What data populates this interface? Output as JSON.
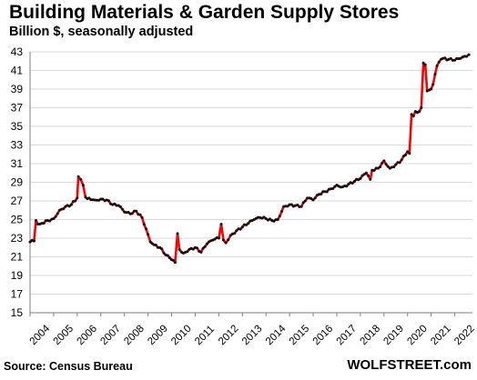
{
  "title": "Building Materials & Garden Supply Stores",
  "subtitle": "Billion $, seasonally adjusted",
  "source": "Source: Census Bureau",
  "brand": "WOLFSTREET.com",
  "colors": {
    "line": "#ff0000",
    "markers": "#111111",
    "grid": "#d9d9d9",
    "axis": "#7f7f7f"
  },
  "chart_data": {
    "type": "line",
    "title": "Building Materials & Garden Supply Stores",
    "subtitle": "Billion $, seasonally adjusted",
    "xlabel": "",
    "ylabel": "",
    "xlim": [
      2004.0,
      2022.75
    ],
    "ylim": [
      15,
      43
    ],
    "y_ticks": [
      15,
      17,
      19,
      21,
      23,
      25,
      27,
      29,
      31,
      33,
      35,
      37,
      39,
      41,
      43
    ],
    "x_tick_labels": [
      "2004",
      "2005",
      "2006",
      "2007",
      "2008",
      "2009",
      "2010",
      "2011",
      "2012",
      "2013",
      "2014",
      "2015",
      "2016",
      "2017",
      "2018",
      "2019",
      "2020",
      "2021",
      "2022"
    ],
    "grid": true,
    "series": [
      {
        "x": [
          2004.0,
          2004.17,
          2004.25,
          2004.33,
          2004.5,
          2004.75,
          2005.0,
          2005.25,
          2005.5,
          2005.75,
          2006.0,
          2006.05,
          2006.15,
          2006.25,
          2006.35,
          2006.5,
          2006.75,
          2007.0,
          2007.25,
          2007.5,
          2007.75,
          2008.0,
          2008.25,
          2008.5,
          2008.75,
          2009.0,
          2009.1,
          2009.25,
          2009.5,
          2009.75,
          2010.0,
          2010.15,
          2010.25,
          2010.33,
          2010.42,
          2010.5,
          2010.75,
          2011.0,
          2011.25,
          2011.5,
          2011.75,
          2012.0,
          2012.1,
          2012.2,
          2012.3,
          2012.5,
          2012.75,
          2013.0,
          2013.25,
          2013.5,
          2013.75,
          2014.0,
          2014.25,
          2014.5,
          2014.75,
          2015.0,
          2015.25,
          2015.5,
          2015.75,
          2016.0,
          2016.25,
          2016.5,
          2016.75,
          2017.0,
          2017.25,
          2017.5,
          2017.75,
          2018.0,
          2018.25,
          2018.42,
          2018.5,
          2018.75,
          2019.0,
          2019.25,
          2019.5,
          2019.75,
          2020.0,
          2020.08,
          2020.17,
          2020.25,
          2020.33,
          2020.5,
          2020.58,
          2020.67,
          2020.75,
          2020.83,
          2020.92,
          2021.0,
          2021.08,
          2021.17,
          2021.25,
          2021.33,
          2021.42,
          2021.5,
          2021.75,
          2022.0,
          2022.25,
          2022.5,
          2022.6
        ],
        "y": [
          22.6,
          22.7,
          24.9,
          24.5,
          24.6,
          24.9,
          25.1,
          26.0,
          26.4,
          26.6,
          27.3,
          29.6,
          29.3,
          28.7,
          27.4,
          27.3,
          27.1,
          27.2,
          27.1,
          26.6,
          26.5,
          25.8,
          25.6,
          25.9,
          25.2,
          23.4,
          22.6,
          22.3,
          22.0,
          21.2,
          20.7,
          20.4,
          23.5,
          21.8,
          21.5,
          21.4,
          21.8,
          22.0,
          21.5,
          22.4,
          22.8,
          23.0,
          24.5,
          22.8,
          22.5,
          23.3,
          23.8,
          24.2,
          24.6,
          25.0,
          25.2,
          25.1,
          24.9,
          25.0,
          26.4,
          26.6,
          26.5,
          26.4,
          27.3,
          27.1,
          27.7,
          28.0,
          28.3,
          28.7,
          28.5,
          28.8,
          29.1,
          29.4,
          30.0,
          29.3,
          30.3,
          30.5,
          31.3,
          30.5,
          30.9,
          31.4,
          32.3,
          32.1,
          36.3,
          36.1,
          36.6,
          36.6,
          37.0,
          41.8,
          41.6,
          38.8,
          38.9,
          39.0,
          39.5,
          40.6,
          41.5,
          41.9,
          42.2,
          42.3,
          42.2,
          42.1,
          42.3,
          42.5,
          42.7
        ]
      }
    ]
  }
}
